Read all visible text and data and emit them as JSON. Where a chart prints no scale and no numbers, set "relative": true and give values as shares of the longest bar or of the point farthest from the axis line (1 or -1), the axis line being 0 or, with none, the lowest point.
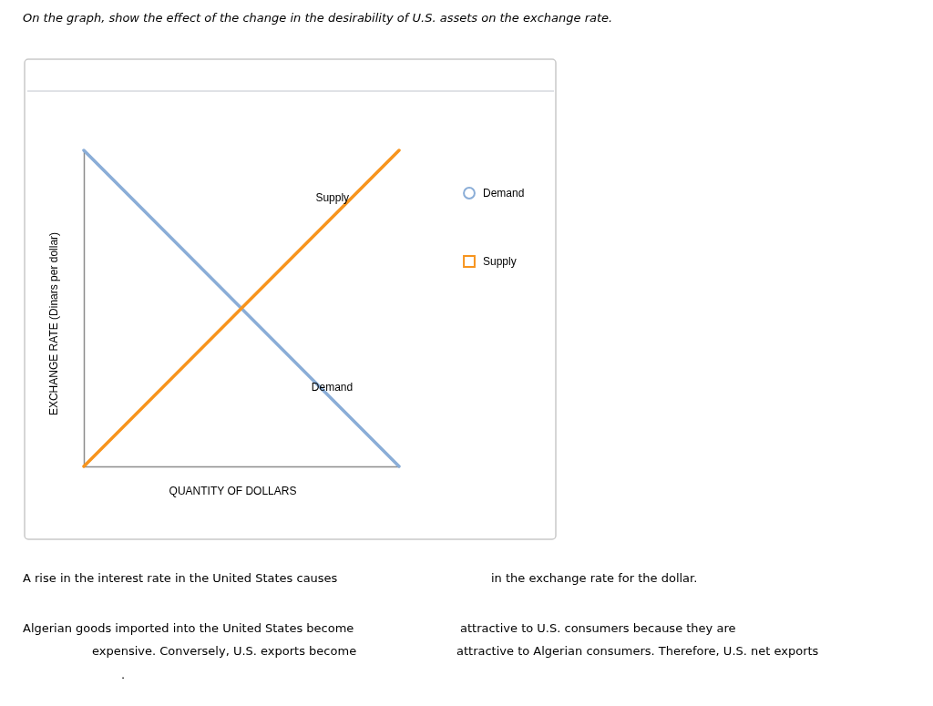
{
  "chart_data": {
    "type": "line",
    "relative": true,
    "title": "On the graph, show the effect of the change in the desirability of U.S. assets on the exchange rate.",
    "xlabel": "QUANTITY OF DOLLARS",
    "ylabel": "EXCHANGE RATE (Dinars per dollar)",
    "categories": [
      null,
      null
    ],
    "series": [
      {
        "name": "Demand",
        "color": "#8aadd7",
        "values": [
          1,
          0
        ]
      },
      {
        "name": "Supply",
        "color": "#f7941d",
        "values": [
          0,
          1
        ]
      }
    ],
    "legend": "right",
    "annotations": [
      "A rise in the interest rate in the United States causes",
      "in the exchange rate for the dollar.",
      "Algerian goods imported into the United States become",
      "attractive to U.S. consumers because they are",
      "expensive. Conversely, U.S. exports become",
      "attractive to Algerian consumers. Therefore, U.S. net exports",
      "."
    ]
  }
}
